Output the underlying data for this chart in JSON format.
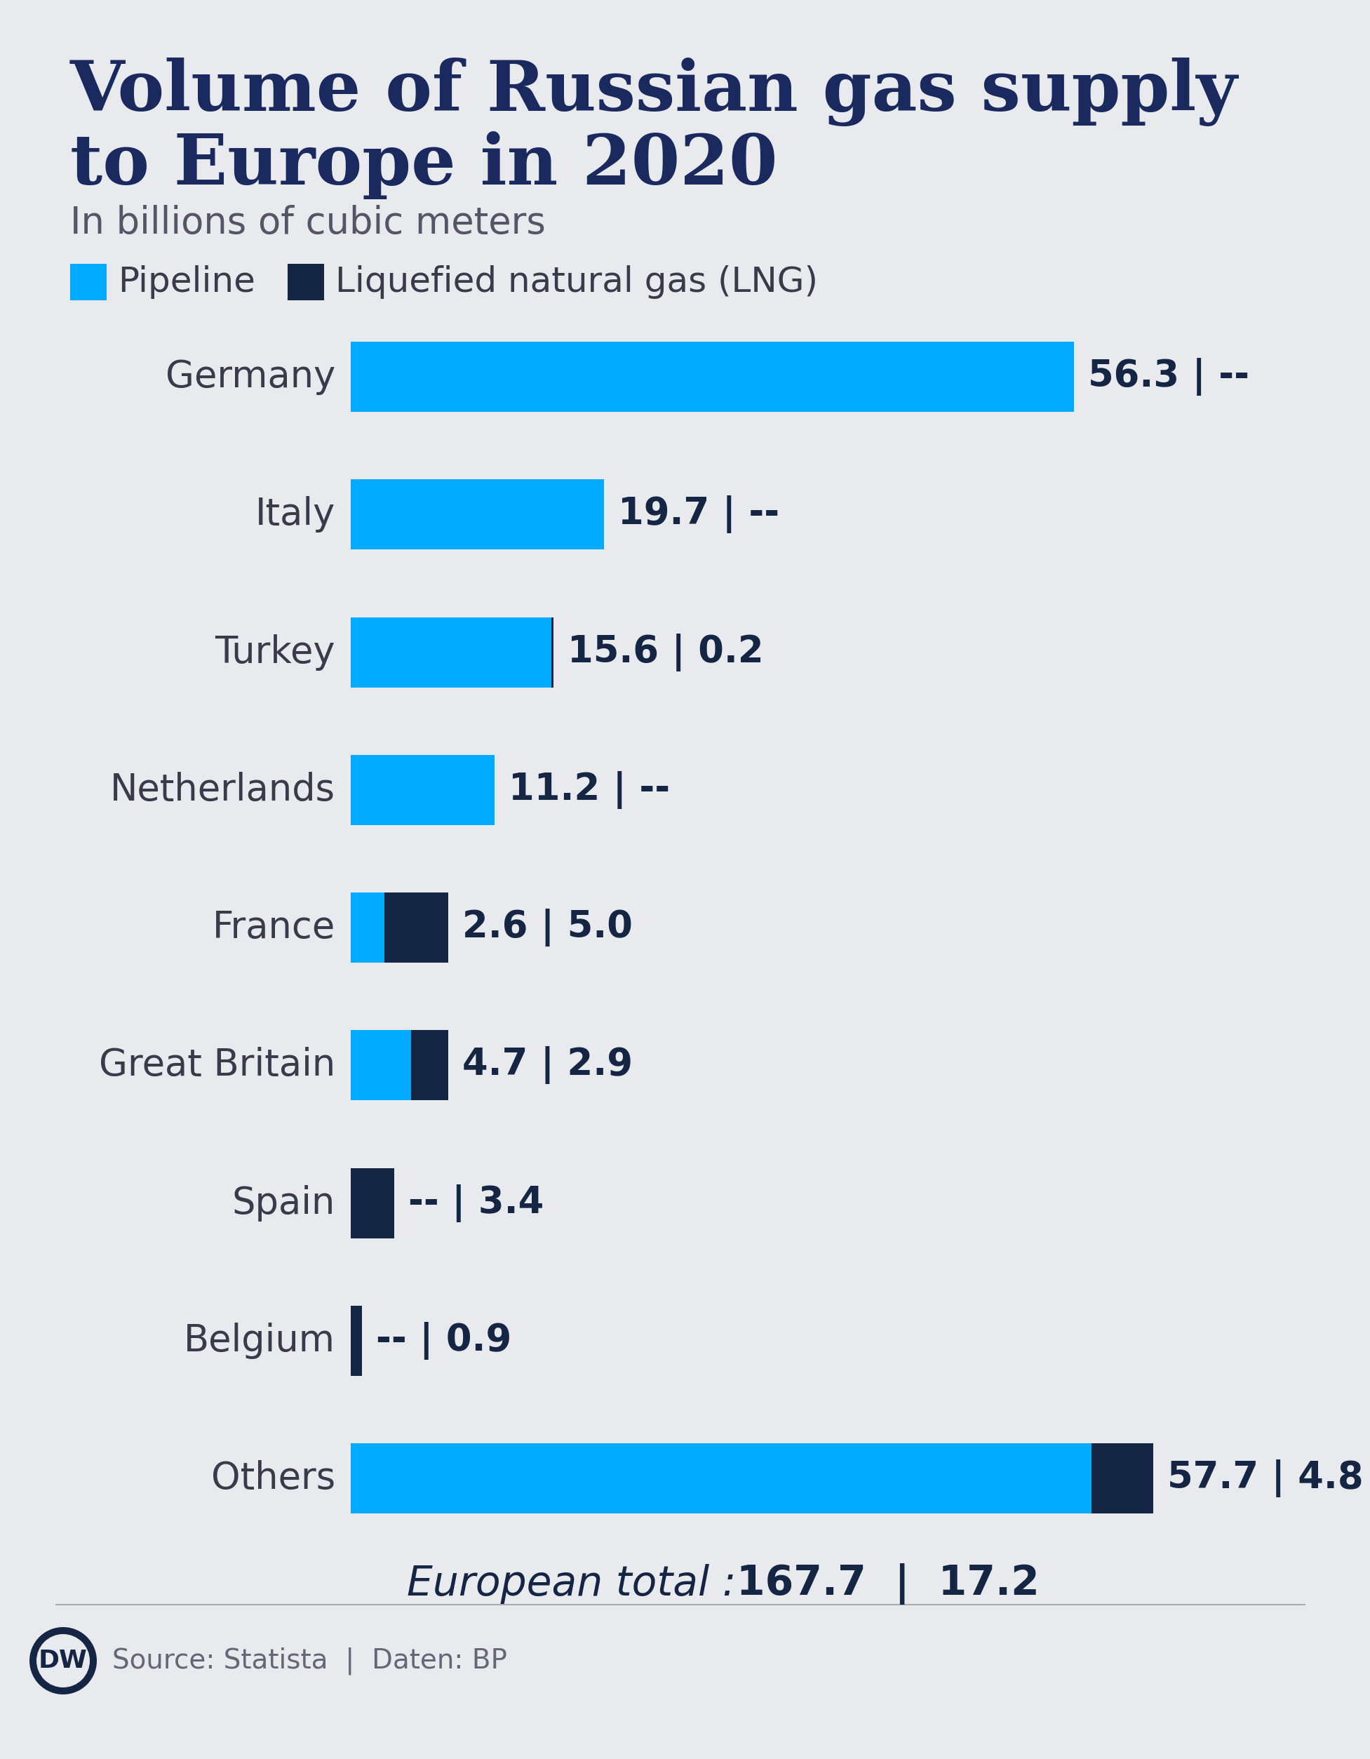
{
  "title_line1": "Volume of Russian gas supply",
  "title_line2": "to Europe in 2020",
  "subtitle": "In billions of cubic meters",
  "background_color": "#e8eaed",
  "title_color": "#1a2a5e",
  "subtitle_color": "#555566",
  "pipeline_color": "#00aaff",
  "lng_color": "#152645",
  "label_color": "#3a3a4a",
  "value_color": "#152645",
  "categories": [
    "Germany",
    "Italy",
    "Turkey",
    "Netherlands",
    "France",
    "Great Britain",
    "Spain",
    "Belgium",
    "Others"
  ],
  "pipeline_values": [
    56.3,
    19.7,
    15.6,
    11.2,
    2.6,
    4.7,
    0.0,
    0.0,
    57.7
  ],
  "lng_values": [
    0.0,
    0.0,
    0.2,
    0.0,
    5.0,
    2.9,
    3.4,
    0.9,
    4.8
  ],
  "pipeline_display": [
    "56.3",
    "19.7",
    "15.6",
    "11.2",
    "2.6",
    "4.7",
    "--",
    "--",
    "57.7"
  ],
  "lng_display": [
    "--",
    "--",
    "0.2",
    "--",
    "5.0",
    "2.9",
    "3.4",
    "0.9",
    "4.8"
  ],
  "total_pipeline": "167.7",
  "total_lng": "17.2",
  "source_text": "Source: Statista  |  Daten: BP",
  "max_value": 65.0,
  "dw_logo_color": "#152645"
}
